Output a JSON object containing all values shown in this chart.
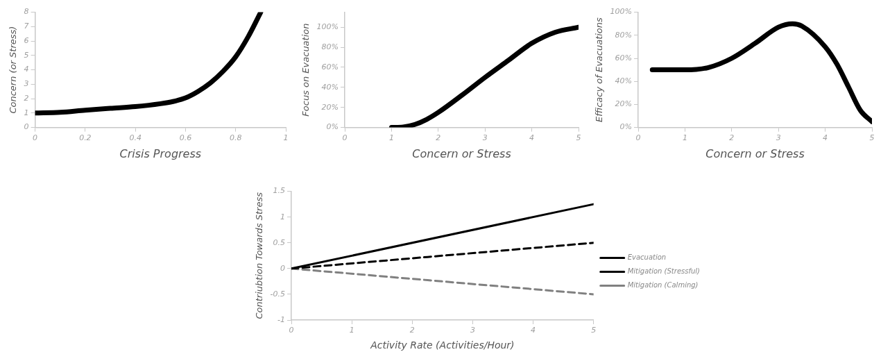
{
  "chart_data": [
    {
      "type": "line",
      "xlabel": "Crisis Progress",
      "ylabel": "Concern (or Stress)",
      "xlim": [
        0,
        1
      ],
      "ylim": [
        0,
        8
      ],
      "xticks": [
        0,
        0.2,
        0.4,
        0.6,
        0.8,
        1
      ],
      "yticks": [
        0,
        1,
        2,
        3,
        4,
        5,
        6,
        7,
        8
      ],
      "grid": false,
      "legend": false,
      "marker": "none",
      "series": [
        {
          "color": "#000000",
          "x": [
            0,
            0.1,
            0.2,
            0.3,
            0.4,
            0.5,
            0.55,
            0.6,
            0.65,
            0.7,
            0.75,
            0.8,
            0.85,
            0.9
          ],
          "values": [
            1,
            1.05,
            1.2,
            1.33,
            1.45,
            1.65,
            1.8,
            2.05,
            2.5,
            3.1,
            3.9,
            4.9,
            6.3,
            8
          ]
        }
      ]
    },
    {
      "type": "line",
      "xlabel": "Concern or Stress",
      "ylabel": "Focus on Evacuation",
      "xlim": [
        0,
        5
      ],
      "ylim": [
        0,
        115
      ],
      "xticks": [
        0,
        1,
        2,
        3,
        4,
        5
      ],
      "yticks": [
        {
          "value": 0,
          "label": "0%"
        },
        {
          "value": 20,
          "label": "20%"
        },
        {
          "value": 40,
          "label": "40%"
        },
        {
          "value": 60,
          "label": "60%"
        },
        {
          "value": 80,
          "label": "80%"
        },
        {
          "value": 100,
          "label": "100%"
        }
      ],
      "grid": false,
      "legend": false,
      "marker": "none",
      "series": [
        {
          "color": "#000000",
          "x": [
            1,
            1.25,
            1.5,
            1.75,
            2,
            2.5,
            3,
            3.5,
            4,
            4.5,
            5
          ],
          "values": [
            0,
            0.5,
            3,
            8,
            15,
            32,
            50,
            67,
            84,
            95,
            100
          ]
        }
      ]
    },
    {
      "type": "line",
      "xlabel": "Concern or Stress",
      "ylabel": "Efficacy of Evacuations",
      "xlim": [
        0,
        5
      ],
      "ylim": [
        0,
        100
      ],
      "xticks": [
        0,
        1,
        2,
        3,
        4,
        5
      ],
      "yticks": [
        {
          "value": 0,
          "label": "0%"
        },
        {
          "value": 20,
          "label": "20%"
        },
        {
          "value": 40,
          "label": "40%"
        },
        {
          "value": 60,
          "label": "60%"
        },
        {
          "value": 80,
          "label": "80%"
        },
        {
          "value": 100,
          "label": "100%"
        }
      ],
      "grid": false,
      "legend": false,
      "marker": "none",
      "series": [
        {
          "color": "#000000",
          "x": [
            0.3,
            1,
            1.5,
            2,
            2.5,
            3,
            3.3,
            3.5,
            4,
            4.25,
            4.5,
            4.75,
            5
          ],
          "values": [
            50,
            50,
            52,
            60,
            73,
            87,
            90,
            88,
            70,
            55,
            35,
            15,
            5
          ]
        }
      ]
    },
    {
      "type": "line",
      "xlabel": "Activity Rate (Activities/Hour)",
      "ylabel": "Contriubtion Towards Stress",
      "xlim": [
        0,
        5
      ],
      "ylim": [
        -1,
        1.5
      ],
      "xticks": [
        0,
        1,
        2,
        3,
        4,
        5
      ],
      "yticks": [
        -1,
        -0.5,
        0,
        0.5,
        1,
        1.5
      ],
      "grid": false,
      "legend": "right",
      "marker": "none",
      "series": [
        {
          "name": "Evacuation",
          "color": "#000000",
          "line_style": "solid",
          "x": [
            0,
            5
          ],
          "values": [
            0,
            1.25
          ]
        },
        {
          "name": "Mitigation (Stressful)",
          "color": "#000000",
          "line_style": "dashed",
          "x": [
            0,
            5
          ],
          "values": [
            0,
            0.5
          ]
        },
        {
          "name": "Mitigation (Calming)",
          "color": "#808080",
          "line_style": "dashed",
          "x": [
            0,
            5
          ],
          "values": [
            0,
            -0.5
          ]
        }
      ]
    }
  ]
}
